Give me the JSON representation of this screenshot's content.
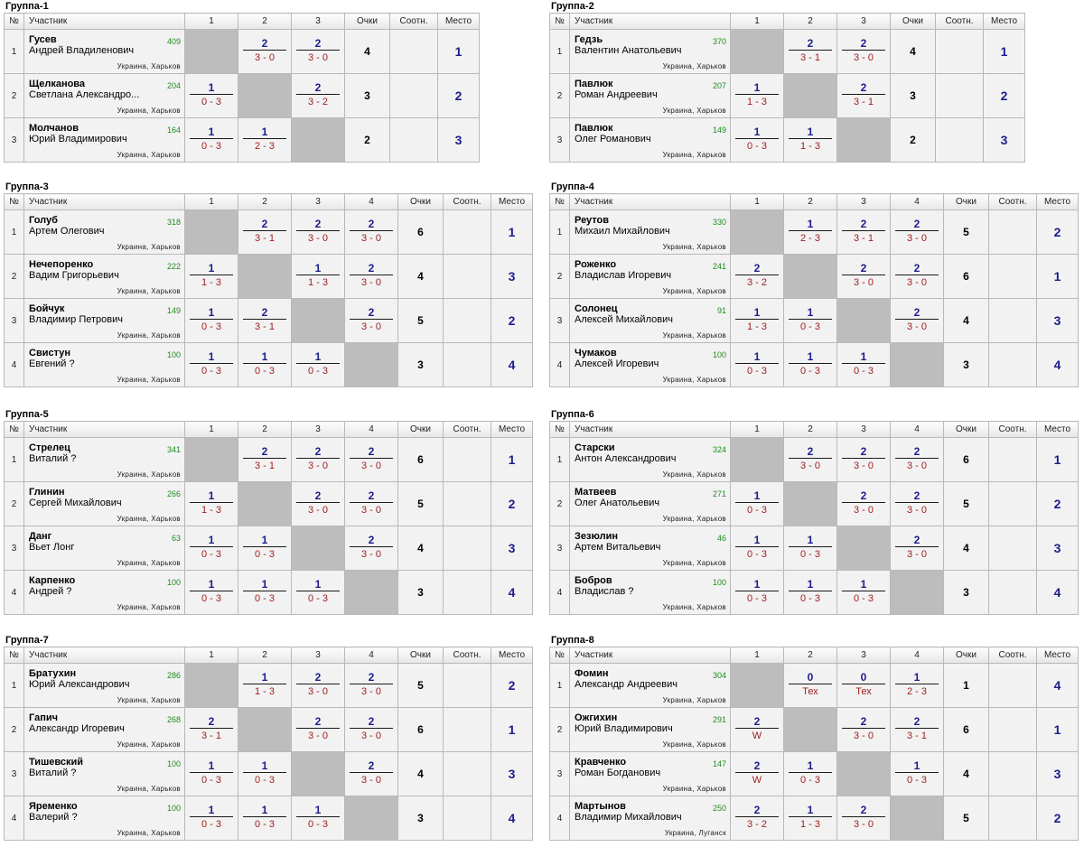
{
  "headers": {
    "num": "№",
    "player": "Участник",
    "points": "Очки",
    "ratio": "Соотн.",
    "place": "Место"
  },
  "colors": {
    "points_text": "#1d1d8c",
    "score_text": "#9c1c1c",
    "rating_text": "#1f8a1f",
    "diagonal": "#bdbdbd"
  },
  "groups": [
    {
      "title": "Группа-1",
      "players": [
        {
          "num": "1",
          "name": "Гусев",
          "first": "Андрей Владиленович",
          "rating": "409",
          "loc": "Украина, Харьков",
          "results": [
            null,
            {
              "p": "2",
              "s": "3 - 0"
            },
            {
              "p": "2",
              "s": "3 - 0"
            }
          ],
          "points": "4",
          "ratio": "",
          "place": "1"
        },
        {
          "num": "2",
          "name": "Щелканова",
          "first": "Светлана Александро...",
          "rating": "204",
          "loc": "Украина, Харьков",
          "results": [
            {
              "p": "1",
              "s": "0 - 3"
            },
            null,
            {
              "p": "2",
              "s": "3 - 2"
            }
          ],
          "points": "3",
          "ratio": "",
          "place": "2"
        },
        {
          "num": "3",
          "name": "Молчанов",
          "first": "Юрий Владимирович",
          "rating": "164",
          "loc": "Украина, Харьков",
          "results": [
            {
              "p": "1",
              "s": "0 - 3"
            },
            {
              "p": "1",
              "s": "2 - 3"
            },
            null
          ],
          "points": "2",
          "ratio": "",
          "place": "3"
        }
      ]
    },
    {
      "title": "Группа-2",
      "players": [
        {
          "num": "1",
          "name": "Гедзь",
          "first": "Валентин Анатольевич",
          "rating": "370",
          "loc": "Украина, Харьков",
          "results": [
            null,
            {
              "p": "2",
              "s": "3 - 1"
            },
            {
              "p": "2",
              "s": "3 - 0"
            }
          ],
          "points": "4",
          "ratio": "",
          "place": "1"
        },
        {
          "num": "2",
          "name": "Павлюк",
          "first": "Роман Андреевич",
          "rating": "207",
          "loc": "Украина, Харьков",
          "results": [
            {
              "p": "1",
              "s": "1 - 3"
            },
            null,
            {
              "p": "2",
              "s": "3 - 1"
            }
          ],
          "points": "3",
          "ratio": "",
          "place": "2"
        },
        {
          "num": "3",
          "name": "Павлюк",
          "first": "Олег Романович",
          "rating": "149",
          "loc": "Украина, Харьков",
          "results": [
            {
              "p": "1",
              "s": "0 - 3"
            },
            {
              "p": "1",
              "s": "1 - 3"
            },
            null
          ],
          "points": "2",
          "ratio": "",
          "place": "3"
        }
      ]
    },
    {
      "title": "Группа-3",
      "players": [
        {
          "num": "1",
          "name": "Голуб",
          "first": "Артем Олегович",
          "rating": "318",
          "loc": "Украина, Харьков",
          "results": [
            null,
            {
              "p": "2",
              "s": "3 - 1"
            },
            {
              "p": "2",
              "s": "3 - 0"
            },
            {
              "p": "2",
              "s": "3 - 0"
            }
          ],
          "points": "6",
          "ratio": "",
          "place": "1"
        },
        {
          "num": "2",
          "name": "Нечепоренко",
          "first": "Вадим Григорьевич",
          "rating": "222",
          "loc": "Украина, Харьков",
          "results": [
            {
              "p": "1",
              "s": "1 - 3"
            },
            null,
            {
              "p": "1",
              "s": "1 - 3"
            },
            {
              "p": "2",
              "s": "3 - 0"
            }
          ],
          "points": "4",
          "ratio": "",
          "place": "3"
        },
        {
          "num": "3",
          "name": "Бойчук",
          "first": "Владимир Петрович",
          "rating": "149",
          "loc": "Украина, Харьков",
          "results": [
            {
              "p": "1",
              "s": "0 - 3"
            },
            {
              "p": "2",
              "s": "3 - 1"
            },
            null,
            {
              "p": "2",
              "s": "3 - 0"
            }
          ],
          "points": "5",
          "ratio": "",
          "place": "2"
        },
        {
          "num": "4",
          "name": "Свистун",
          "first": "Евгений ?",
          "rating": "100",
          "loc": "Украина, Харьков",
          "results": [
            {
              "p": "1",
              "s": "0 - 3"
            },
            {
              "p": "1",
              "s": "0 - 3"
            },
            {
              "p": "1",
              "s": "0 - 3"
            },
            null
          ],
          "points": "3",
          "ratio": "",
          "place": "4"
        }
      ]
    },
    {
      "title": "Группа-4",
      "players": [
        {
          "num": "1",
          "name": "Реутов",
          "first": "Михаил Михайлович",
          "rating": "330",
          "loc": "Украина, Харьков",
          "results": [
            null,
            {
              "p": "1",
              "s": "2 - 3"
            },
            {
              "p": "2",
              "s": "3 - 1"
            },
            {
              "p": "2",
              "s": "3 - 0"
            }
          ],
          "points": "5",
          "ratio": "",
          "place": "2"
        },
        {
          "num": "2",
          "name": "Роженко",
          "first": "Владислав Игоревич",
          "rating": "241",
          "loc": "Украина, Харьков",
          "results": [
            {
              "p": "2",
              "s": "3 - 2"
            },
            null,
            {
              "p": "2",
              "s": "3 - 0"
            },
            {
              "p": "2",
              "s": "3 - 0"
            }
          ],
          "points": "6",
          "ratio": "",
          "place": "1"
        },
        {
          "num": "3",
          "name": "Солонец",
          "first": "Алексей Михайлович",
          "rating": "91",
          "loc": "Украина, Харьков",
          "results": [
            {
              "p": "1",
              "s": "1 - 3"
            },
            {
              "p": "1",
              "s": "0 - 3"
            },
            null,
            {
              "p": "2",
              "s": "3 - 0"
            }
          ],
          "points": "4",
          "ratio": "",
          "place": "3"
        },
        {
          "num": "4",
          "name": "Чумаков",
          "first": "Алексей Игоревич",
          "rating": "100",
          "loc": "Украина, Харьков",
          "results": [
            {
              "p": "1",
              "s": "0 - 3"
            },
            {
              "p": "1",
              "s": "0 - 3"
            },
            {
              "p": "1",
              "s": "0 - 3"
            },
            null
          ],
          "points": "3",
          "ratio": "",
          "place": "4"
        }
      ]
    },
    {
      "title": "Группа-5",
      "players": [
        {
          "num": "1",
          "name": "Стрелец",
          "first": "Виталий ?",
          "rating": "341",
          "loc": "Украина, Харьков",
          "results": [
            null,
            {
              "p": "2",
              "s": "3 - 1"
            },
            {
              "p": "2",
              "s": "3 - 0"
            },
            {
              "p": "2",
              "s": "3 - 0"
            }
          ],
          "points": "6",
          "ratio": "",
          "place": "1"
        },
        {
          "num": "2",
          "name": "Глинин",
          "first": "Сергей Михайлович",
          "rating": "266",
          "loc": "Украина, Харьков",
          "results": [
            {
              "p": "1",
              "s": "1 - 3"
            },
            null,
            {
              "p": "2",
              "s": "3 - 0"
            },
            {
              "p": "2",
              "s": "3 - 0"
            }
          ],
          "points": "5",
          "ratio": "",
          "place": "2"
        },
        {
          "num": "3",
          "name": "Данг",
          "first": "Вьет Лонг",
          "rating": "63",
          "loc": "Украина, Харьков",
          "results": [
            {
              "p": "1",
              "s": "0 - 3"
            },
            {
              "p": "1",
              "s": "0 - 3"
            },
            null,
            {
              "p": "2",
              "s": "3 - 0"
            }
          ],
          "points": "4",
          "ratio": "",
          "place": "3"
        },
        {
          "num": "4",
          "name": "Карпенко",
          "first": "Андрей ?",
          "rating": "100",
          "loc": "Украина, Харьков",
          "results": [
            {
              "p": "1",
              "s": "0 - 3"
            },
            {
              "p": "1",
              "s": "0 - 3"
            },
            {
              "p": "1",
              "s": "0 - 3"
            },
            null
          ],
          "points": "3",
          "ratio": "",
          "place": "4"
        }
      ]
    },
    {
      "title": "Группа-6",
      "players": [
        {
          "num": "1",
          "name": "Старски",
          "first": "Антон Александрович",
          "rating": "324",
          "loc": "Украина, Харьков",
          "results": [
            null,
            {
              "p": "2",
              "s": "3 - 0"
            },
            {
              "p": "2",
              "s": "3 - 0"
            },
            {
              "p": "2",
              "s": "3 - 0"
            }
          ],
          "points": "6",
          "ratio": "",
          "place": "1"
        },
        {
          "num": "2",
          "name": "Матвеев",
          "first": "Олег Анатольевич",
          "rating": "271",
          "loc": "Украина, Харьков",
          "results": [
            {
              "p": "1",
              "s": "0 - 3"
            },
            null,
            {
              "p": "2",
              "s": "3 - 0"
            },
            {
              "p": "2",
              "s": "3 - 0"
            }
          ],
          "points": "5",
          "ratio": "",
          "place": "2"
        },
        {
          "num": "3",
          "name": "Зезюлин",
          "first": "Артем Витальевич",
          "rating": "46",
          "loc": "Украина, Харьков",
          "results": [
            {
              "p": "1",
              "s": "0 - 3"
            },
            {
              "p": "1",
              "s": "0 - 3"
            },
            null,
            {
              "p": "2",
              "s": "3 - 0"
            }
          ],
          "points": "4",
          "ratio": "",
          "place": "3"
        },
        {
          "num": "4",
          "name": "Бобров",
          "first": "Владислав ?",
          "rating": "100",
          "loc": "Украина, Харьков",
          "results": [
            {
              "p": "1",
              "s": "0 - 3"
            },
            {
              "p": "1",
              "s": "0 - 3"
            },
            {
              "p": "1",
              "s": "0 - 3"
            },
            null
          ],
          "points": "3",
          "ratio": "",
          "place": "4"
        }
      ]
    },
    {
      "title": "Группа-7",
      "players": [
        {
          "num": "1",
          "name": "Братухин",
          "first": "Юрий Александрович",
          "rating": "286",
          "loc": "Украина, Харьков",
          "results": [
            null,
            {
              "p": "1",
              "s": "1 - 3"
            },
            {
              "p": "2",
              "s": "3 - 0"
            },
            {
              "p": "2",
              "s": "3 - 0"
            }
          ],
          "points": "5",
          "ratio": "",
          "place": "2"
        },
        {
          "num": "2",
          "name": "Гапич",
          "first": "Александр Игоревич",
          "rating": "268",
          "loc": "Украина, Харьков",
          "results": [
            {
              "p": "2",
              "s": "3 - 1"
            },
            null,
            {
              "p": "2",
              "s": "3 - 0"
            },
            {
              "p": "2",
              "s": "3 - 0"
            }
          ],
          "points": "6",
          "ratio": "",
          "place": "1"
        },
        {
          "num": "3",
          "name": "Тишевский",
          "first": "Виталий ?",
          "rating": "100",
          "loc": "Украина, Харьков",
          "results": [
            {
              "p": "1",
              "s": "0 - 3"
            },
            {
              "p": "1",
              "s": "0 - 3"
            },
            null,
            {
              "p": "2",
              "s": "3 - 0"
            }
          ],
          "points": "4",
          "ratio": "",
          "place": "3"
        },
        {
          "num": "4",
          "name": "Яременко",
          "first": "Валерий ?",
          "rating": "100",
          "loc": "Украина, Харьков",
          "results": [
            {
              "p": "1",
              "s": "0 - 3"
            },
            {
              "p": "1",
              "s": "0 - 3"
            },
            {
              "p": "1",
              "s": "0 - 3"
            },
            null
          ],
          "points": "3",
          "ratio": "",
          "place": "4"
        }
      ]
    },
    {
      "title": "Группа-8",
      "players": [
        {
          "num": "1",
          "name": "Фомин",
          "first": "Александр Андреевич",
          "rating": "304",
          "loc": "Украина, Харьков",
          "results": [
            null,
            {
              "p": "0",
              "s": "Тех"
            },
            {
              "p": "0",
              "s": "Тех"
            },
            {
              "p": "1",
              "s": "2 - 3"
            }
          ],
          "points": "1",
          "ratio": "",
          "place": "4"
        },
        {
          "num": "2",
          "name": "Ожгихин",
          "first": "Юрий Владимирович",
          "rating": "291",
          "loc": "Украина, Харьков",
          "results": [
            {
              "p": "2",
              "s": "W"
            },
            null,
            {
              "p": "2",
              "s": "3 - 0"
            },
            {
              "p": "2",
              "s": "3 - 1"
            }
          ],
          "points": "6",
          "ratio": "",
          "place": "1"
        },
        {
          "num": "3",
          "name": "Кравченко",
          "first": "Роман Богданович",
          "rating": "147",
          "loc": "Украина, Харьков",
          "results": [
            {
              "p": "2",
              "s": "W"
            },
            {
              "p": "1",
              "s": "0 - 3"
            },
            null,
            {
              "p": "1",
              "s": "0 - 3"
            }
          ],
          "points": "4",
          "ratio": "",
          "place": "3"
        },
        {
          "num": "4",
          "name": "Мартынов",
          "first": "Владимир Михайлович",
          "rating": "250",
          "loc": "Украина, Луганск",
          "results": [
            {
              "p": "2",
              "s": "3 - 2"
            },
            {
              "p": "1",
              "s": "1 - 3"
            },
            {
              "p": "2",
              "s": "3 - 0"
            },
            null
          ],
          "points": "5",
          "ratio": "",
          "place": "2"
        }
      ]
    }
  ]
}
